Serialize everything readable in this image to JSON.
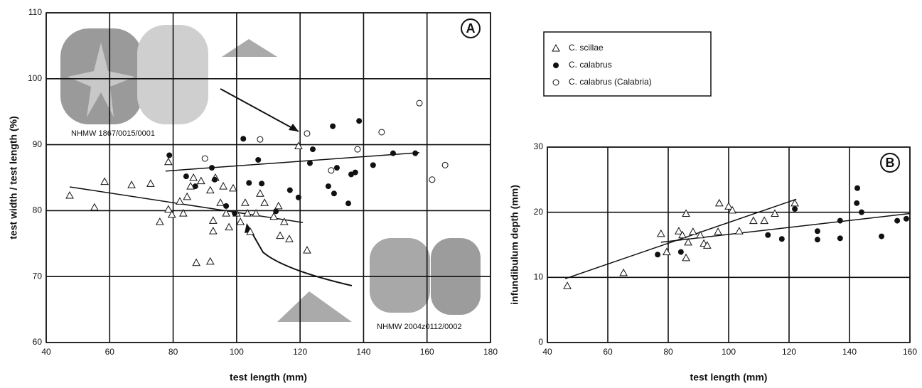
{
  "chart_data": [
    {
      "type": "scatter",
      "label": "A",
      "x_label": "test length (mm)",
      "y_label": "test width / test length (%)",
      "xlim": [
        40,
        180
      ],
      "xticks": [
        40,
        60,
        80,
        100,
        120,
        140,
        160,
        180
      ],
      "ylim": [
        60,
        110
      ],
      "yticks": [
        60,
        70,
        80,
        90,
        100,
        110
      ],
      "grid": true,
      "annotations": [
        "NHMW 1867/0015/0001",
        "NHMW 2004z0112/0002"
      ],
      "series": [
        {
          "name": "C. scillae",
          "marker": "triangle",
          "color": "#111111",
          "x": [
            47.4,
            55.2,
            58.4,
            66.9,
            72.9,
            75.8,
            78.5,
            78.5,
            79.6,
            82.1,
            83.2,
            84.4,
            85.5,
            86.4,
            88.8,
            91.7,
            92.6,
            92.6,
            91.7,
            87.3,
            93.3,
            94.9,
            95.8,
            96.7,
            97.6,
            98.9,
            100.0,
            101.2,
            102.7,
            103.4,
            104.3,
            106.1,
            107.4,
            108.8,
            111.7,
            113.7,
            113.2,
            115.0,
            116.6,
            119.5,
            122.2
          ],
          "y": [
            82.3,
            80.5,
            84.4,
            83.9,
            84.1,
            78.3,
            87.4,
            80.2,
            79.4,
            81.4,
            79.6,
            82.1,
            83.7,
            85.0,
            84.5,
            83.1,
            78.5,
            76.9,
            72.3,
            72.1,
            85.0,
            81.2,
            83.7,
            79.6,
            77.5,
            83.4,
            79.6,
            78.3,
            81.2,
            79.6,
            76.8,
            79.6,
            82.6,
            81.2,
            79.1,
            76.2,
            80.7,
            78.3,
            75.7,
            89.8,
            74.0
          ]
        },
        {
          "name": "C. calabrus",
          "marker": "filled-circle",
          "color": "#111111",
          "x": [
            78.8,
            84.1,
            87.0,
            92.2,
            93.1,
            96.7,
            99.4,
            102.1,
            103.9,
            106.8,
            107.9,
            112.4,
            116.8,
            119.5,
            123.1,
            124.0,
            130.3,
            131.6,
            130.7,
            128.9,
            135.2,
            136.1,
            137.4,
            138.6,
            143.0,
            149.3,
            156.3
          ],
          "y": [
            88.4,
            85.2,
            83.7,
            86.5,
            84.7,
            80.7,
            79.6,
            90.9,
            84.2,
            87.7,
            84.1,
            79.9,
            83.1,
            82.0,
            87.2,
            89.3,
            92.8,
            86.5,
            82.6,
            83.7,
            81.1,
            85.5,
            85.8,
            93.6,
            86.9,
            88.7,
            88.7
          ]
        },
        {
          "name": "C. calabrus (Calabria)",
          "marker": "open-circle",
          "color": "#111111",
          "x": [
            90.0,
            107.4,
            122.2,
            129.8,
            138.1,
            145.7,
            157.6,
            161.6,
            165.7
          ],
          "y": [
            87.9,
            90.8,
            91.7,
            86.1,
            89.3,
            91.9,
            96.3,
            84.7,
            86.9
          ]
        }
      ],
      "trend_lines": [
        {
          "x": [
            47.4,
            120.9
          ],
          "y": [
            83.6,
            78.2
          ]
        },
        {
          "x": [
            77.6,
            157.6
          ],
          "y": [
            86.0,
            88.8
          ]
        }
      ]
    },
    {
      "type": "scatter",
      "label": "B",
      "x_label": "test length (mm)",
      "y_label": "infundibulum depth (mm)",
      "xlim": [
        40,
        160
      ],
      "xticks": [
        40,
        60,
        80,
        100,
        120,
        140,
        160
      ],
      "ylim": [
        0,
        30
      ],
      "yticks": [
        0,
        10,
        20,
        30
      ],
      "grid": true,
      "series": [
        {
          "marker": "triangle",
          "color": "#111111",
          "x": [
            46.6,
            65.2,
            77.6,
            79.5,
            83.5,
            84.7,
            85.9,
            86.6,
            88.2,
            90.6,
            91.8,
            92.9,
            96.5,
            96.9,
            100.0,
            101.2,
            103.5,
            108.2,
            111.8,
            115.3,
            121.9,
            85.9
          ],
          "y": [
            8.7,
            10.7,
            16.7,
            13.9,
            17.1,
            16.5,
            13.0,
            15.4,
            17.0,
            16.5,
            15.2,
            14.9,
            17.0,
            21.4,
            20.9,
            20.3,
            17.1,
            18.7,
            18.7,
            19.8,
            21.4,
            19.8
          ]
        },
        {
          "marker": "filled-circle",
          "color": "#111111",
          "x": [
            76.5,
            84.2,
            113.0,
            117.6,
            121.9,
            129.4,
            129.4,
            136.9,
            136.9,
            142.6,
            142.4,
            144.0,
            150.6,
            155.8,
            158.8
          ],
          "y": [
            13.5,
            13.9,
            16.5,
            15.9,
            20.5,
            15.8,
            17.1,
            16.0,
            18.7,
            23.7,
            21.4,
            20.0,
            16.3,
            18.7,
            19.0
          ]
        }
      ],
      "trend_lines": [
        {
          "x": [
            45.9,
            122.4
          ],
          "y": [
            9.8,
            22.0
          ]
        },
        {
          "x": [
            77.6,
            160
          ],
          "y": [
            15.4,
            19.8
          ]
        }
      ]
    }
  ]
}
